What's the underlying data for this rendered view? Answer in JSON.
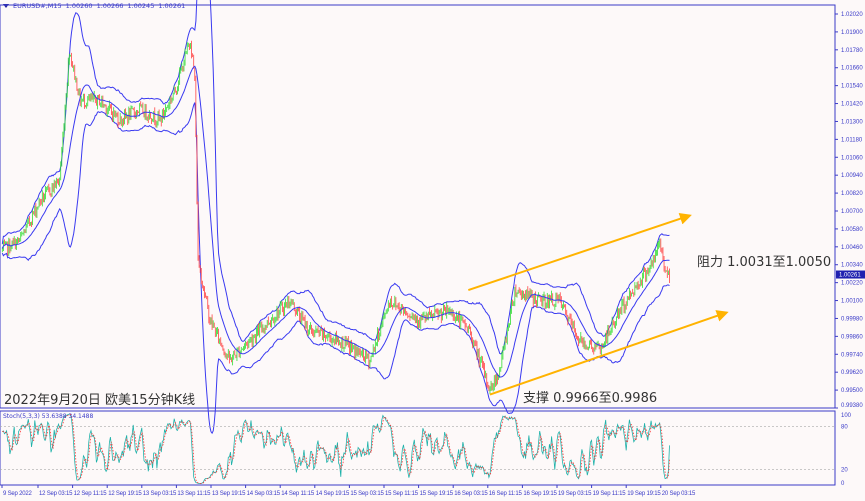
{
  "header": {
    "symbol": "EURUSD#,M15",
    "open": "1.00260",
    "high": "1.00266",
    "low": "1.00245",
    "close": "1.00261"
  },
  "title": "2022年9月20日 欧美15分钟K线",
  "annotations": {
    "resistance": "阻力 1.0031至1.0050",
    "support": "支撑 0.9966至0.9986"
  },
  "current_price": "1.00261",
  "stoch_label": "Stoch(5,3,3) 53.6388 34.1488",
  "colors": {
    "background": "#fdf9f9",
    "axis": "#3b3bc8",
    "bands": "#3a3af0",
    "bull": "#33dd33",
    "bear": "#ff4444",
    "trendline": "#ffb300",
    "stoch_main": "#20b2aa",
    "stoch_signal": "#ff3333"
  },
  "chart_data": [
    {
      "type": "candlestick",
      "timeframe": "M15",
      "ylim": [
        0.9938,
        1.0202
      ],
      "y_ticks": [
        "1.02020",
        "1.01900",
        "1.01780",
        "1.01660",
        "1.01540",
        "1.01420",
        "1.01300",
        "1.01180",
        "1.01060",
        "1.00940",
        "1.00820",
        "1.00700",
        "1.00580",
        "1.00460",
        "1.00340",
        "1.00220",
        "1.00100",
        "0.99980",
        "0.99860",
        "0.99740",
        "0.99620",
        "0.99500",
        "0.99380"
      ],
      "x_ticks": [
        "9 Sep 2022",
        "12 Sep 03:15",
        "12 Sep 11:15",
        "12 Sep 19:15",
        "13 Sep 03:15",
        "13 Sep 11:15",
        "13 Sep 19:15",
        "14 Sep 03:15",
        "14 Sep 11:15",
        "14 Sep 19:15",
        "15 Sep 03:15",
        "15 Sep 11:15",
        "15 Sep 19:15",
        "16 Sep 03:15",
        "16 Sep 11:15",
        "16 Sep 19:15",
        "19 Sep 03:15",
        "19 Sep 11:15",
        "19 Sep 19:15",
        "20 Sep 03:15"
      ],
      "price_path": [
        [
          "9 Sep 19:00",
          1.0044
        ],
        [
          "9 Sep 23:00",
          1.005
        ],
        [
          "12 Sep 03:45",
          1.0077
        ],
        [
          "12 Sep 08:15",
          1.0091
        ],
        [
          "12 Sep 10:30",
          1.0178
        ],
        [
          "12 Sep 13:00",
          1.0144
        ],
        [
          "12 Sep 17:30",
          1.0144
        ],
        [
          "12 Sep 22:15",
          1.0131
        ],
        [
          "13 Sep 02:45",
          1.0138
        ],
        [
          "13 Sep 07:30",
          1.0131
        ],
        [
          "13 Sep 11:00",
          1.0151
        ],
        [
          "13 Sep 14:30",
          1.0185
        ],
        [
          "13 Sep 15:30",
          1.0158
        ],
        [
          "13 Sep 16:15",
          1.0037
        ],
        [
          "13 Sep 19:00",
          0.9997
        ],
        [
          "13 Sep 23:30",
          0.997
        ],
        [
          "14 Sep 06:30",
          0.999
        ],
        [
          "14 Sep 13:30",
          1.001
        ],
        [
          "14 Sep 18:00",
          0.999
        ],
        [
          "15 Sep 01:00",
          0.9983
        ],
        [
          "15 Sep 08:00",
          0.997
        ],
        [
          "15 Sep 12:30",
          1.001
        ],
        [
          "15 Sep 19:30",
          0.9997
        ],
        [
          "16 Sep 02:30",
          1.0003
        ],
        [
          "16 Sep 07:00",
          0.999
        ],
        [
          "16 Sep 11:45",
          0.995
        ],
        [
          "16 Sep 14:00",
          0.9963
        ],
        [
          "16 Sep 17:30",
          1.0017
        ],
        [
          "16 Sep 23:15",
          1.001
        ],
        [
          "19 Sep 03:45",
          1.001
        ],
        [
          "19 Sep 08:30",
          0.9983
        ],
        [
          "19 Sep 13:15",
          0.9977
        ],
        [
          "19 Sep 17:45",
          1.0003
        ],
        [
          "19 Sep 22:30",
          1.0024
        ],
        [
          "20 Sep 01:45",
          1.0037
        ],
        [
          "20 Sep 03:00",
          1.005
        ],
        [
          "20 Sep 04:15",
          1.003
        ],
        [
          "20 Sep 05:15",
          1.00261
        ]
      ],
      "indicators": [
        "Bollinger Bands",
        "Moving Average"
      ],
      "trendlines": [
        {
          "label": "resistance",
          "from": [
            "16 Sep 06:45",
            1.0017
          ],
          "to": [
            "20 Sep 10:00",
            1.0067
          ]
        },
        {
          "label": "support",
          "from": [
            "16 Sep 11:45",
            0.9947
          ],
          "to": [
            "20 Sep 18:30",
            1.0002
          ]
        }
      ]
    },
    {
      "type": "line",
      "name": "Stoch(5,3,3)",
      "ylim": [
        0,
        100
      ],
      "y_ticks": [
        "100",
        "80",
        "20",
        "0"
      ],
      "levels": [
        80,
        20
      ],
      "main_last": 53.6388,
      "signal_last": 34.1488
    }
  ]
}
